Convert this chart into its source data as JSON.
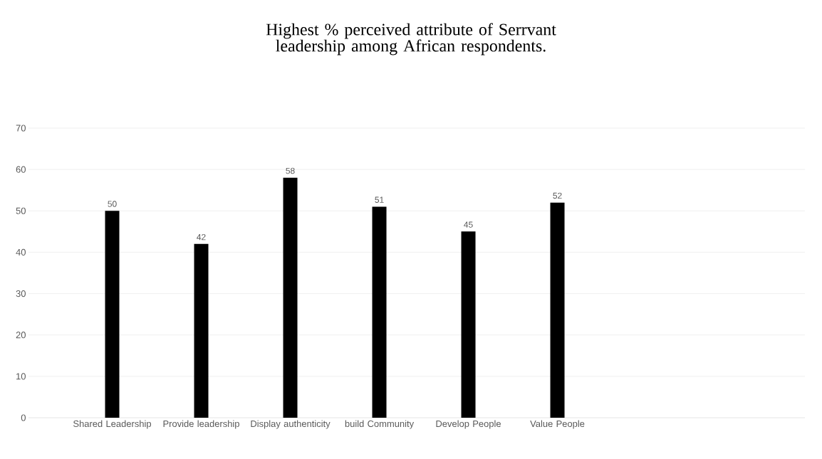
{
  "chart_data": {
    "type": "bar",
    "title": "Highest % perceived attribute of Serrvant leadership among African respondents.",
    "categories": [
      "Shared Leadership",
      "Provide leadership",
      "Display authenticity",
      "build Community",
      "Develop People",
      "Value People"
    ],
    "values": [
      50,
      42,
      58,
      51,
      45,
      52
    ],
    "color": "#000000",
    "ylim": [
      0,
      70
    ],
    "yticks": [
      0,
      10,
      20,
      30,
      40,
      50,
      60,
      70
    ],
    "grid": "y",
    "data_labels": true
  }
}
